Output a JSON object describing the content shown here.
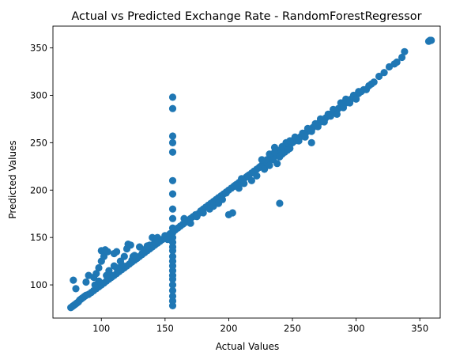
{
  "chart_data": {
    "type": "scatter",
    "title": "Actual vs Predicted Exchange Rate - RandomForestRegressor",
    "xlabel": "Actual Values",
    "ylabel": "Predicted Values",
    "xlim": [
      62,
      366
    ],
    "ylim": [
      65,
      373
    ],
    "xticks": [
      100,
      150,
      200,
      250,
      300,
      350
    ],
    "yticks": [
      100,
      150,
      200,
      250,
      300,
      350
    ],
    "grid": false,
    "color": "#1f77b4",
    "series": [
      {
        "points": [
          [
            76,
            76
          ],
          [
            77,
            77
          ],
          [
            78,
            78
          ],
          [
            79,
            79
          ],
          [
            80,
            80
          ],
          [
            81,
            81
          ],
          [
            82,
            82
          ],
          [
            83,
            84
          ],
          [
            84,
            85
          ],
          [
            85,
            86
          ],
          [
            86,
            87
          ],
          [
            87,
            88
          ],
          [
            88,
            89
          ],
          [
            90,
            90
          ],
          [
            92,
            92
          ],
          [
            94,
            94
          ],
          [
            96,
            96
          ],
          [
            98,
            98
          ],
          [
            100,
            100
          ],
          [
            102,
            102
          ],
          [
            104,
            104
          ],
          [
            106,
            106
          ],
          [
            108,
            108
          ],
          [
            110,
            110
          ],
          [
            112,
            112
          ],
          [
            114,
            114
          ],
          [
            116,
            116
          ],
          [
            118,
            118
          ],
          [
            120,
            120
          ],
          [
            122,
            122
          ],
          [
            124,
            124
          ],
          [
            126,
            126
          ],
          [
            128,
            128
          ],
          [
            130,
            130
          ],
          [
            132,
            132
          ],
          [
            134,
            134
          ],
          [
            136,
            136
          ],
          [
            138,
            138
          ],
          [
            140,
            140
          ],
          [
            142,
            142
          ],
          [
            144,
            144
          ],
          [
            146,
            146
          ],
          [
            148,
            148
          ],
          [
            150,
            150
          ],
          [
            152,
            152
          ],
          [
            154,
            154
          ],
          [
            78,
            105
          ],
          [
            80,
            96
          ],
          [
            88,
            103
          ],
          [
            90,
            110
          ],
          [
            94,
            108
          ],
          [
            96,
            112
          ],
          [
            98,
            118
          ],
          [
            100,
            125
          ],
          [
            100,
            136
          ],
          [
            102,
            130
          ],
          [
            103,
            137
          ],
          [
            105,
            135
          ],
          [
            108,
            110
          ],
          [
            110,
            120
          ],
          [
            110,
            133
          ],
          [
            112,
            135
          ],
          [
            115,
            125
          ],
          [
            118,
            130
          ],
          [
            120,
            138
          ],
          [
            121,
            143
          ],
          [
            123,
            142
          ],
          [
            125,
            130
          ],
          [
            128,
            128
          ],
          [
            130,
            140
          ],
          [
            132,
            133
          ],
          [
            135,
            138
          ],
          [
            138,
            142
          ],
          [
            140,
            150
          ],
          [
            143,
            148
          ],
          [
            145,
            146
          ],
          [
            150,
            152
          ],
          [
            152,
            148
          ],
          [
            95,
            100
          ],
          [
            98,
            104
          ],
          [
            104,
            110
          ],
          [
            106,
            115
          ],
          [
            112,
            118
          ],
          [
            116,
            121
          ],
          [
            124,
            126
          ],
          [
            126,
            131
          ],
          [
            134,
            137
          ],
          [
            136,
            141
          ],
          [
            142,
            145
          ],
          [
            144,
            150
          ],
          [
            156,
            78
          ],
          [
            156,
            83
          ],
          [
            156,
            88
          ],
          [
            156,
            94
          ],
          [
            156,
            100
          ],
          [
            156,
            106
          ],
          [
            156,
            110
          ],
          [
            156,
            115
          ],
          [
            156,
            120
          ],
          [
            156,
            125
          ],
          [
            156,
            130
          ],
          [
            156,
            136
          ],
          [
            156,
            140
          ],
          [
            156,
            145
          ],
          [
            156,
            150
          ],
          [
            156,
            155
          ],
          [
            156,
            160
          ],
          [
            156,
            170
          ],
          [
            156,
            180
          ],
          [
            156,
            196
          ],
          [
            156,
            210
          ],
          [
            156,
            240
          ],
          [
            156,
            250
          ],
          [
            156,
            257
          ],
          [
            156,
            286
          ],
          [
            156,
            298
          ],
          [
            158,
            158
          ],
          [
            160,
            160
          ],
          [
            162,
            162
          ],
          [
            164,
            164
          ],
          [
            166,
            166
          ],
          [
            168,
            168
          ],
          [
            170,
            170
          ],
          [
            172,
            172
          ],
          [
            174,
            174
          ],
          [
            176,
            175
          ],
          [
            178,
            178
          ],
          [
            180,
            180
          ],
          [
            182,
            182
          ],
          [
            184,
            184
          ],
          [
            186,
            186
          ],
          [
            188,
            188
          ],
          [
            190,
            190
          ],
          [
            192,
            192
          ],
          [
            194,
            194
          ],
          [
            196,
            196
          ],
          [
            198,
            198
          ],
          [
            200,
            200
          ],
          [
            202,
            202
          ],
          [
            204,
            204
          ],
          [
            206,
            206
          ],
          [
            208,
            208
          ],
          [
            210,
            210
          ],
          [
            212,
            212
          ],
          [
            214,
            214
          ],
          [
            216,
            216
          ],
          [
            218,
            218
          ],
          [
            220,
            220
          ],
          [
            222,
            222
          ],
          [
            224,
            224
          ],
          [
            226,
            226
          ],
          [
            228,
            228
          ],
          [
            230,
            230
          ],
          [
            232,
            232
          ],
          [
            234,
            234
          ],
          [
            236,
            236
          ],
          [
            238,
            238
          ],
          [
            240,
            240
          ],
          [
            242,
            242
          ],
          [
            244,
            244
          ],
          [
            246,
            246
          ],
          [
            248,
            248
          ],
          [
            250,
            250
          ],
          [
            252,
            252
          ],
          [
            254,
            254
          ],
          [
            256,
            256
          ],
          [
            258,
            258
          ],
          [
            260,
            260
          ],
          [
            262,
            262
          ],
          [
            264,
            264
          ],
          [
            266,
            266
          ],
          [
            268,
            268
          ],
          [
            270,
            270
          ],
          [
            272,
            272
          ],
          [
            274,
            274
          ],
          [
            276,
            276
          ],
          [
            278,
            278
          ],
          [
            280,
            280
          ],
          [
            282,
            282
          ],
          [
            284,
            284
          ],
          [
            286,
            286
          ],
          [
            288,
            288
          ],
          [
            290,
            290
          ],
          [
            292,
            292
          ],
          [
            294,
            294
          ],
          [
            296,
            296
          ],
          [
            298,
            298
          ],
          [
            300,
            300
          ],
          [
            302,
            302
          ],
          [
            304,
            304
          ],
          [
            165,
            170
          ],
          [
            170,
            165
          ],
          [
            175,
            172
          ],
          [
            180,
            176
          ],
          [
            185,
            180
          ],
          [
            188,
            183
          ],
          [
            192,
            186
          ],
          [
            195,
            190
          ],
          [
            198,
            197
          ],
          [
            200,
            174
          ],
          [
            203,
            176
          ],
          [
            205,
            205
          ],
          [
            208,
            202
          ],
          [
            210,
            212
          ],
          [
            212,
            207
          ],
          [
            215,
            215
          ],
          [
            218,
            210
          ],
          [
            220,
            220
          ],
          [
            222,
            215
          ],
          [
            225,
            225
          ],
          [
            228,
            222
          ],
          [
            230,
            232
          ],
          [
            232,
            238
          ],
          [
            235,
            232
          ],
          [
            236,
            245
          ],
          [
            238,
            228
          ],
          [
            240,
            186
          ],
          [
            240,
            242
          ],
          [
            242,
            238
          ],
          [
            244,
            246
          ],
          [
            245,
            250
          ],
          [
            248,
            244
          ],
          [
            250,
            252
          ],
          [
            252,
            256
          ],
          [
            255,
            252
          ],
          [
            258,
            260
          ],
          [
            260,
            256
          ],
          [
            262,
            265
          ],
          [
            265,
            262
          ],
          [
            265,
            250
          ],
          [
            268,
            270
          ],
          [
            270,
            267
          ],
          [
            272,
            275
          ],
          [
            275,
            272
          ],
          [
            278,
            280
          ],
          [
            280,
            278
          ],
          [
            282,
            285
          ],
          [
            285,
            280
          ],
          [
            288,
            292
          ],
          [
            290,
            287
          ],
          [
            292,
            296
          ],
          [
            295,
            292
          ],
          [
            298,
            300
          ],
          [
            300,
            296
          ],
          [
            302,
            304
          ],
          [
            226,
            232
          ],
          [
            232,
            226
          ],
          [
            236,
            240
          ],
          [
            240,
            235
          ],
          [
            244,
            240
          ],
          [
            248,
            252
          ],
          [
            242,
            246
          ],
          [
            246,
            242
          ],
          [
            306,
            306
          ],
          [
            308,
            306
          ],
          [
            310,
            310
          ],
          [
            312,
            312
          ],
          [
            314,
            314
          ],
          [
            318,
            320
          ],
          [
            322,
            324
          ],
          [
            326,
            330
          ],
          [
            330,
            333
          ],
          [
            332,
            335
          ],
          [
            336,
            340
          ],
          [
            338,
            346
          ],
          [
            357,
            357
          ],
          [
            358,
            358
          ],
          [
            359,
            358
          ]
        ]
      }
    ]
  }
}
